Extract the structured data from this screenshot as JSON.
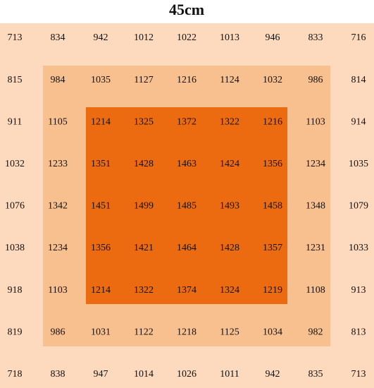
{
  "title": "45cm",
  "table": {
    "rows": [
      [
        713,
        834,
        942,
        1012,
        1022,
        1013,
        946,
        833,
        716
      ],
      [
        815,
        984,
        1035,
        1127,
        1216,
        1124,
        1032,
        986,
        814
      ],
      [
        911,
        1105,
        1214,
        1325,
        1372,
        1322,
        1216,
        1103,
        914
      ],
      [
        1032,
        1233,
        1351,
        1428,
        1463,
        1424,
        1356,
        1234,
        1035
      ],
      [
        1076,
        1342,
        1451,
        1499,
        1485,
        1493,
        1458,
        1348,
        1079
      ],
      [
        1038,
        1234,
        1356,
        1421,
        1464,
        1428,
        1357,
        1231,
        1033
      ],
      [
        918,
        1103,
        1214,
        1322,
        1374,
        1324,
        1219,
        1108,
        913
      ],
      [
        819,
        986,
        1031,
        1122,
        1218,
        1125,
        1034,
        982,
        813
      ],
      [
        718,
        838,
        947,
        1014,
        1026,
        1011,
        942,
        835,
        713
      ]
    ]
  }
}
